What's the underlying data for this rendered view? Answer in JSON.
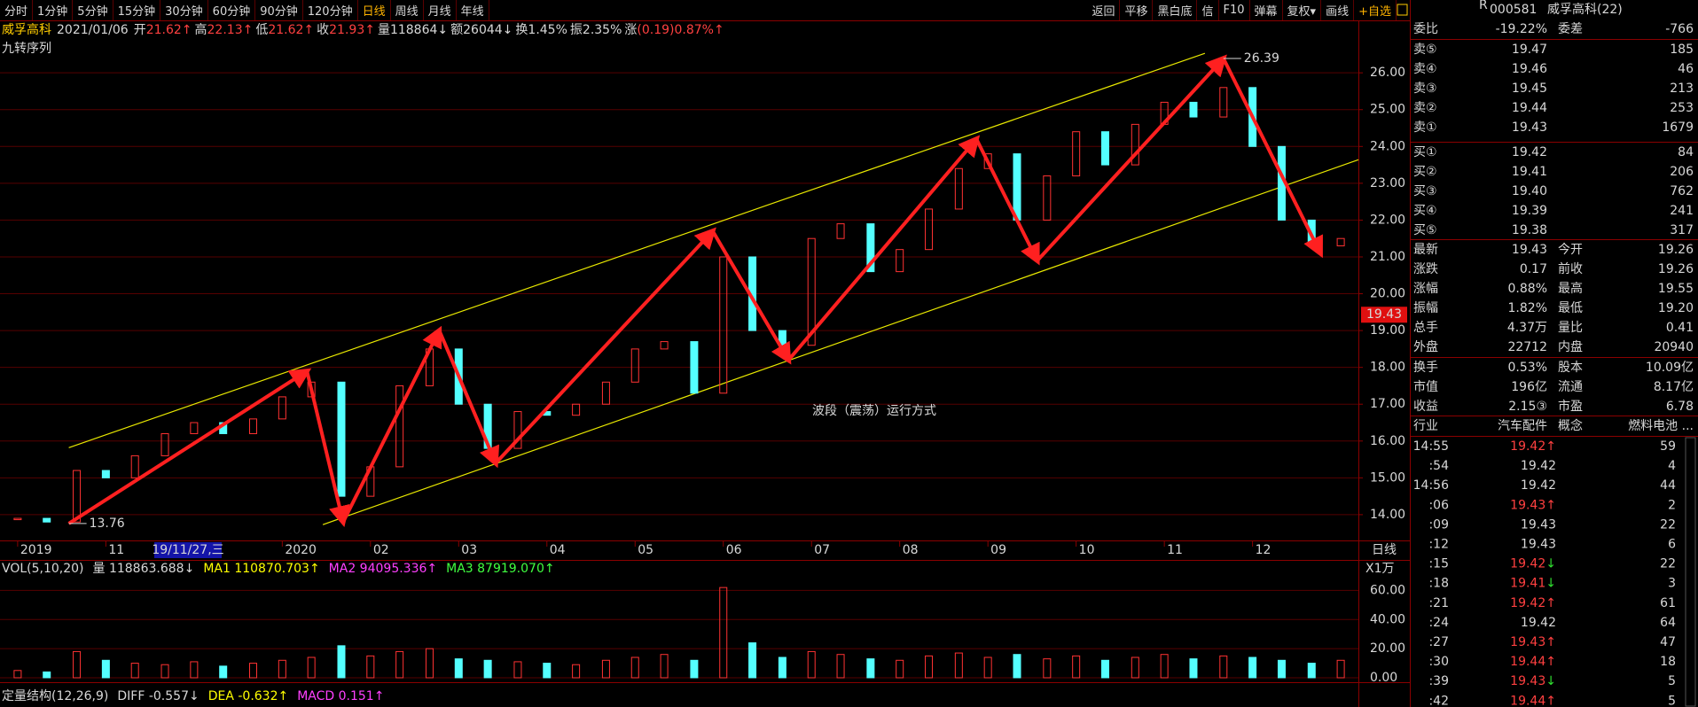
{
  "toolbar": {
    "tabs": [
      "分时",
      "1分钟",
      "5分钟",
      "15分钟",
      "30分钟",
      "60分钟",
      "90分钟",
      "120分钟",
      "日线",
      "周线",
      "月线",
      "年线"
    ],
    "active": "日线",
    "actions": [
      "返回",
      "平移",
      "黑白底",
      "信",
      "F10",
      "弹幕",
      "复权▾",
      "画线",
      "+自选"
    ]
  },
  "quote_line": {
    "name": "威孚高科",
    "date": "2021/01/06",
    "items": [
      {
        "label": "开",
        "value": "21.62↑",
        "color": "#ff4040"
      },
      {
        "label": "高",
        "value": "22.13↑",
        "color": "#ff4040"
      },
      {
        "label": "低",
        "value": "21.62↑",
        "color": "#ff4040"
      },
      {
        "label": "收",
        "value": "21.93↑",
        "color": "#ff4040"
      },
      {
        "label": "量",
        "value": "118864↓",
        "color": "#d8d8d8"
      },
      {
        "label": "额",
        "value": "26044↓",
        "color": "#d8d8d8"
      },
      {
        "label": "换",
        "value": "1.45%",
        "color": "#d8d8d8"
      },
      {
        "label": "振",
        "value": "2.35%",
        "color": "#d8d8d8"
      },
      {
        "label": "涨",
        "value": "(0.19)0.87%↑",
        "color": "#ff4040"
      }
    ]
  },
  "chart_data": {
    "type": "stock",
    "indicator_label": "九转序列",
    "annotation": "波段（震荡）运行方式",
    "period_label": "日线",
    "cursor_label": "19/11/27,三",
    "last_price": 19.43,
    "up_color": "#ff3232",
    "down_color": "#54ffff",
    "xlim": [
      -0.2,
      15.2
    ],
    "ylim": [
      13.3,
      27.4
    ],
    "xticks": [
      {
        "value": 0,
        "label": "2019"
      },
      {
        "value": 1,
        "label": "11"
      },
      {
        "value": 3,
        "label": "2020"
      },
      {
        "value": 4,
        "label": "02"
      },
      {
        "value": 5,
        "label": "03"
      },
      {
        "value": 6,
        "label": "04"
      },
      {
        "value": 7,
        "label": "05"
      },
      {
        "value": 8,
        "label": "06"
      },
      {
        "value": 9,
        "label": "07"
      },
      {
        "value": 10,
        "label": "08"
      },
      {
        "value": 11,
        "label": "09"
      },
      {
        "value": 12,
        "label": "10"
      },
      {
        "value": 13,
        "label": "11"
      },
      {
        "value": 14,
        "label": "12"
      }
    ],
    "yticks": [
      {
        "value": 14,
        "label": "14.00"
      },
      {
        "value": 15,
        "label": "15.00"
      },
      {
        "value": 16,
        "label": "16.00"
      },
      {
        "value": 17,
        "label": "17.00"
      },
      {
        "value": 18,
        "label": "18.00"
      },
      {
        "value": 19,
        "label": "19.00"
      },
      {
        "value": 20,
        "label": "20.00"
      },
      {
        "value": 21,
        "label": "21.00"
      },
      {
        "value": 22,
        "label": "22.00"
      },
      {
        "value": 23,
        "label": "23.00"
      },
      {
        "value": 24,
        "label": "24.00"
      },
      {
        "value": 25,
        "label": "25.00"
      },
      {
        "value": 26,
        "label": "26.00"
      }
    ],
    "x": [
      0,
      0.33,
      0.67,
      1,
      1.33,
      1.67,
      2,
      2.33,
      2.67,
      3,
      3.33,
      3.67,
      4,
      4.33,
      4.67,
      5,
      5.33,
      5.67,
      6,
      6.33,
      6.67,
      7,
      7.33,
      7.67,
      8,
      8.33,
      8.67,
      9,
      9.33,
      9.67,
      10,
      10.33,
      10.67,
      11,
      11.33,
      11.67,
      12,
      12.33,
      12.67,
      13,
      13.33,
      13.67,
      14,
      14.33,
      14.67,
      15
    ],
    "values": [
      13.9,
      13.8,
      15.2,
      15.0,
      15.6,
      16.2,
      16.5,
      16.2,
      16.6,
      17.2,
      17.6,
      14.5,
      15.3,
      17.5,
      18.5,
      17.0,
      15.8,
      16.8,
      16.7,
      17.0,
      17.6,
      18.5,
      18.7,
      17.3,
      21.0,
      19.0,
      18.6,
      21.5,
      21.9,
      20.6,
      21.2,
      22.3,
      23.4,
      23.8,
      22.0,
      23.2,
      24.4,
      23.5,
      24.6,
      25.2,
      24.8,
      25.6,
      24.0,
      22.0,
      21.3,
      21.5
    ],
    "waves": {
      "color": "#ff2020",
      "x": [
        0.58,
        3.28,
        3.69,
        4.78,
        5.42,
        7.88,
        8.74,
        10.87,
        11.56,
        13.67,
        14.77
      ],
      "values": [
        13.76,
        17.9,
        13.8,
        19.0,
        15.4,
        21.7,
        18.2,
        24.2,
        20.9,
        26.39,
        21.1
      ],
      "value_labels": [
        "13.76",
        null,
        null,
        null,
        null,
        null,
        null,
        null,
        null,
        "26.39",
        null
      ]
    },
    "channels": [
      {
        "color": "#e8e800",
        "x": [
          0.58,
          13.46
        ],
        "values": [
          15.82,
          26.53
        ]
      },
      {
        "color": "#e8e800",
        "x": [
          3.46,
          15.2
        ],
        "values": [
          13.73,
          23.64
        ]
      }
    ],
    "volume": {
      "values": [
        5,
        4,
        18,
        12,
        10,
        9,
        11,
        8,
        10,
        12,
        14,
        22,
        15,
        18,
        20,
        13,
        12,
        11,
        10,
        9,
        12,
        14,
        16,
        12,
        62,
        24,
        14,
        18,
        16,
        13,
        12,
        15,
        17,
        14,
        16,
        13,
        15,
        12,
        14,
        16,
        13,
        15,
        14,
        12,
        10,
        12
      ],
      "ylim": [
        0,
        70
      ],
      "yticks": [
        {
          "value": 0,
          "label": "0.00"
        },
        {
          "value": 20,
          "label": "20.00"
        },
        {
          "value": 40,
          "label": "40.00"
        },
        {
          "value": 60,
          "label": "60.00"
        }
      ],
      "unit_label": "X1万",
      "legend": [
        {
          "text": "VOL(5,10,20)",
          "color": "#d8d8d8"
        },
        {
          "text": "量 118863.688↓",
          "color": "#d8d8d8"
        },
        {
          "text": "MA1 110870.703↑",
          "color": "#ffff00"
        },
        {
          "text": "MA2 94095.336↑",
          "color": "#ff40ff"
        },
        {
          "text": "MA3 87919.070↑",
          "color": "#40ff40"
        }
      ]
    },
    "macd_legend": [
      {
        "text": "定量结构(12,26,9)",
        "color": "#d8d8d8"
      },
      {
        "text": "DIFF -0.557↓",
        "color": "#d8d8d8"
      },
      {
        "text": "DEA -0.632↑",
        "color": "#ffff00"
      },
      {
        "text": "MACD 0.151↑",
        "color": "#ff40ff"
      }
    ]
  },
  "quote": {
    "flag": "R",
    "code": "000581",
    "name": "威孚高科(22)",
    "ratio": {
      "l1": "委比",
      "v1": "-19.22%",
      "c1": "#30e030",
      "l2": "委差",
      "v2": "-766",
      "c2": "#30e030"
    },
    "asks": [
      {
        "label": "卖⑤",
        "price": "19.47",
        "vol": "185"
      },
      {
        "label": "卖④",
        "price": "19.46",
        "vol": "46"
      },
      {
        "label": "卖③",
        "price": "19.45",
        "vol": "213"
      },
      {
        "label": "卖②",
        "price": "19.44",
        "vol": "253"
      },
      {
        "label": "卖①",
        "price": "19.43",
        "vol": "1679"
      }
    ],
    "bids": [
      {
        "label": "买①",
        "price": "19.42",
        "vol": "84"
      },
      {
        "label": "买②",
        "price": "19.41",
        "vol": "206"
      },
      {
        "label": "买③",
        "price": "19.40",
        "vol": "762"
      },
      {
        "label": "买④",
        "price": "19.39",
        "vol": "241"
      },
      {
        "label": "买⑤",
        "price": "19.38",
        "vol": "317"
      }
    ],
    "stats": [
      {
        "l1": "最新",
        "v1": "19.43",
        "c1": "#ff4040",
        "l2": "今开",
        "v2": "19.26",
        "c2": "#d8d8d8"
      },
      {
        "l1": "涨跌",
        "v1": "0.17",
        "c1": "#ff4040",
        "l2": "前收",
        "v2": "19.26",
        "c2": "#d8d8d8"
      },
      {
        "l1": "涨幅",
        "v1": "0.88%",
        "c1": "#ff4040",
        "l2": "最高",
        "v2": "19.55",
        "c2": "#ff4040"
      },
      {
        "l1": "振幅",
        "v1": "1.82%",
        "c1": "#d8d8d8",
        "l2": "最低",
        "v2": "19.20",
        "c2": "#30e030"
      },
      {
        "l1": "总手",
        "v1": "4.37万",
        "c1": "#d8d8d8",
        "l2": "量比",
        "v2": "0.41",
        "c2": "#d8d8d8"
      },
      {
        "l1": "外盘",
        "v1": "22712",
        "c1": "#ff4040",
        "l2": "内盘",
        "v2": "20940",
        "c2": "#30e030"
      }
    ],
    "info": [
      {
        "l1": "换手",
        "v1": "0.53%",
        "c1": "#d8d8d8",
        "l2": "股本",
        "v2": "10.09亿",
        "c2": "#d8d8d8"
      },
      {
        "l1": "市值",
        "v1": "196亿",
        "c1": "#d8d8d8",
        "l2": "流通",
        "v2": "8.17亿",
        "c2": "#d8d8d8"
      },
      {
        "l1": "收益",
        "v1": "2.15③",
        "c1": "#d8d8d8",
        "l2": "市盈",
        "v2": "6.78",
        "c2": "#d8d8d8"
      }
    ],
    "sector": {
      "l1": "行业",
      "v1": "汽车配件",
      "c1": "#d8d8d8",
      "l2": "概念",
      "v2": "燃料电池 ...",
      "c2": "#d8d8d8"
    },
    "ticks": [
      {
        "time": "14:55",
        "price": "19.42↑",
        "vol": "59",
        "color": "#30e030"
      },
      {
        "time": ":54",
        "price": "19.42",
        "vol": "4",
        "color": "#30e030"
      },
      {
        "time": "14:56",
        "price": "19.42",
        "vol": "44",
        "color": "#30e030"
      },
      {
        "time": ":06",
        "price": "19.43↑",
        "vol": "2",
        "color": "#ff4040"
      },
      {
        "time": ":09",
        "price": "19.43",
        "vol": "22",
        "color": "#ff4040"
      },
      {
        "time": ":12",
        "price": "19.43",
        "vol": "6",
        "color": "#ff4040"
      },
      {
        "time": ":15",
        "price": "19.42↓",
        "vol": "22",
        "color": "#30e030"
      },
      {
        "time": ":18",
        "price": "19.41↓",
        "vol": "3",
        "color": "#30e030"
      },
      {
        "time": ":21",
        "price": "19.42↑",
        "vol": "61",
        "color": "#ff4040"
      },
      {
        "time": ":24",
        "price": "19.42",
        "vol": "64",
        "color": "#ff4040"
      },
      {
        "time": ":27",
        "price": "19.43↑",
        "vol": "47",
        "color": "#ff4040"
      },
      {
        "time": ":30",
        "price": "19.44↑",
        "vol": "18",
        "color": "#ff4040"
      },
      {
        "time": ":39",
        "price": "19.43↓",
        "vol": "5",
        "color": "#30e030"
      },
      {
        "time": ":42",
        "price": "19.44↑",
        "vol": "5",
        "color": "#ff4040"
      }
    ]
  }
}
